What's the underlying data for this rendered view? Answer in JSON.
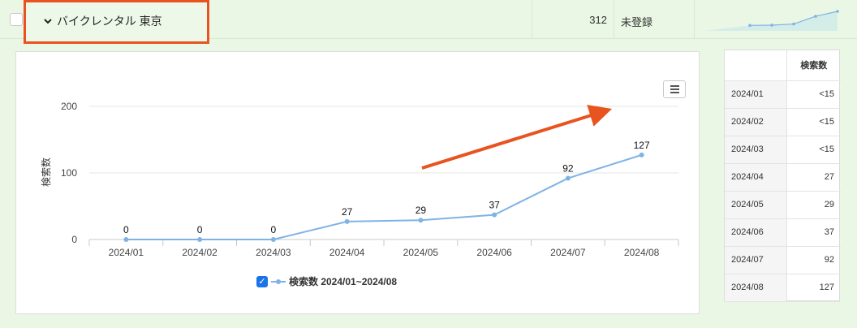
{
  "row": {
    "keyword": "バイクレンタル 東京",
    "volume": "312",
    "status": "未登録"
  },
  "chart_data": {
    "type": "line",
    "categories": [
      "2024/01",
      "2024/02",
      "2024/03",
      "2024/04",
      "2024/05",
      "2024/06",
      "2024/07",
      "2024/08"
    ],
    "series": [
      {
        "name": "検索数 2024/01~2024/08",
        "values": [
          0,
          0,
          0,
          27,
          29,
          37,
          92,
          127
        ]
      }
    ],
    "ylabel": "検索数",
    "yticks": [
      0,
      100,
      200
    ],
    "ylim": [
      0,
      200
    ],
    "color": "#7fb3e5"
  },
  "legend": {
    "check": "✓"
  },
  "table": {
    "header": "検索数",
    "rows": [
      {
        "month": "2024/01",
        "value": "<15"
      },
      {
        "month": "2024/02",
        "value": "<15"
      },
      {
        "month": "2024/03",
        "value": "<15"
      },
      {
        "month": "2024/04",
        "value": "27"
      },
      {
        "month": "2024/05",
        "value": "29"
      },
      {
        "month": "2024/06",
        "value": "37"
      },
      {
        "month": "2024/07",
        "value": "92"
      },
      {
        "month": "2024/08",
        "value": "127"
      }
    ]
  },
  "colors": {
    "highlight": "#e8531f",
    "line": "#7fb3e5",
    "background": "#eaf7e4"
  }
}
